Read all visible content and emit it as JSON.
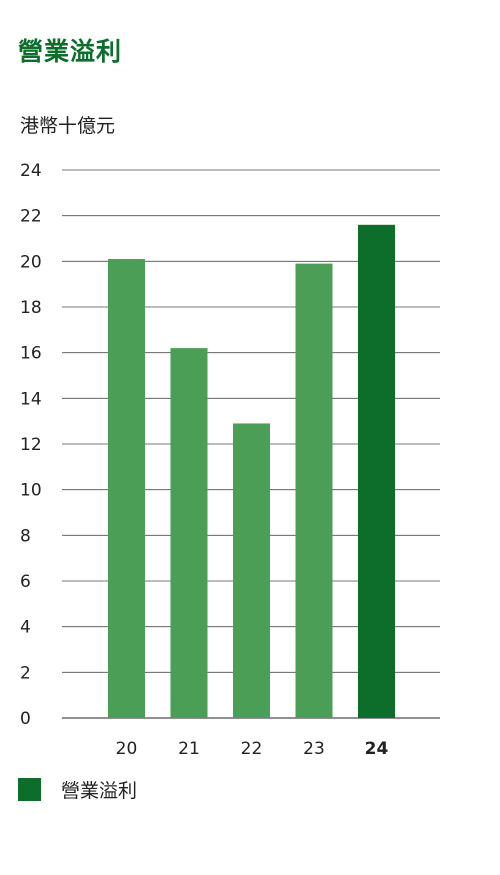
{
  "chart_data": {
    "type": "bar",
    "title": "營業溢利",
    "ylabel": "港幣十億元",
    "categories": [
      "20",
      "21",
      "22",
      "23",
      "24"
    ],
    "highlight_category": "24",
    "series": [
      {
        "name": "營業溢利",
        "values": [
          20.1,
          16.2,
          12.9,
          19.9,
          21.6
        ]
      }
    ],
    "ylim": [
      0,
      24
    ],
    "yticks": [
      0,
      2,
      4,
      6,
      8,
      10,
      12,
      14,
      16,
      18,
      20,
      22,
      24
    ],
    "grid": true,
    "legend_position": "bottom-left",
    "colors": {
      "bar": "#4a9e56",
      "bar_highlight": "#0d6e2b",
      "grid": "#4d4d4d",
      "title": "#0d6e2b"
    }
  }
}
